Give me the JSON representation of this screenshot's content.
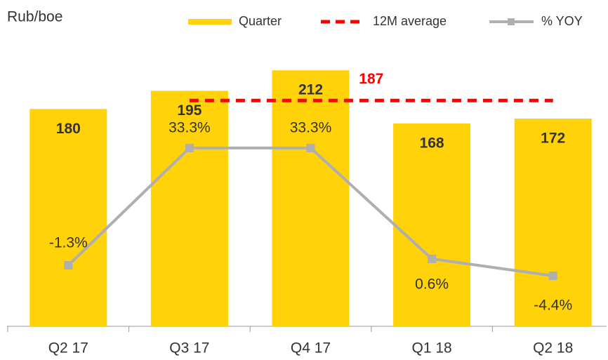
{
  "chart_data": {
    "type": "bar",
    "y_label": "Rub/boe",
    "categories": [
      "Q2 17",
      "Q3 17",
      "Q4 17",
      "Q1 18",
      "Q2 18"
    ],
    "ylim": [
      0,
      265
    ],
    "y2lim": [
      -19.3,
      75.1
    ],
    "series": [
      {
        "name": "Quarter",
        "type": "bar",
        "color": "#FFD20A",
        "values": [
          180,
          195,
          212,
          168,
          172
        ]
      },
      {
        "name": "12M average",
        "type": "dashed-line",
        "color": "#FF0000",
        "values": [
          null,
          187,
          187,
          187,
          187
        ],
        "value_labels": [
          null,
          null,
          null,
          null,
          "187"
        ]
      },
      {
        "name": "% YOY",
        "type": "line",
        "axis": "y2",
        "color": "#AFAFAF",
        "values": [
          -1.3,
          33.3,
          33.3,
          0.6,
          -4.4
        ],
        "value_labels": [
          "-1.3%",
          "33.3%",
          "33.3%",
          "0.6%",
          "-4.4%"
        ]
      }
    ]
  }
}
